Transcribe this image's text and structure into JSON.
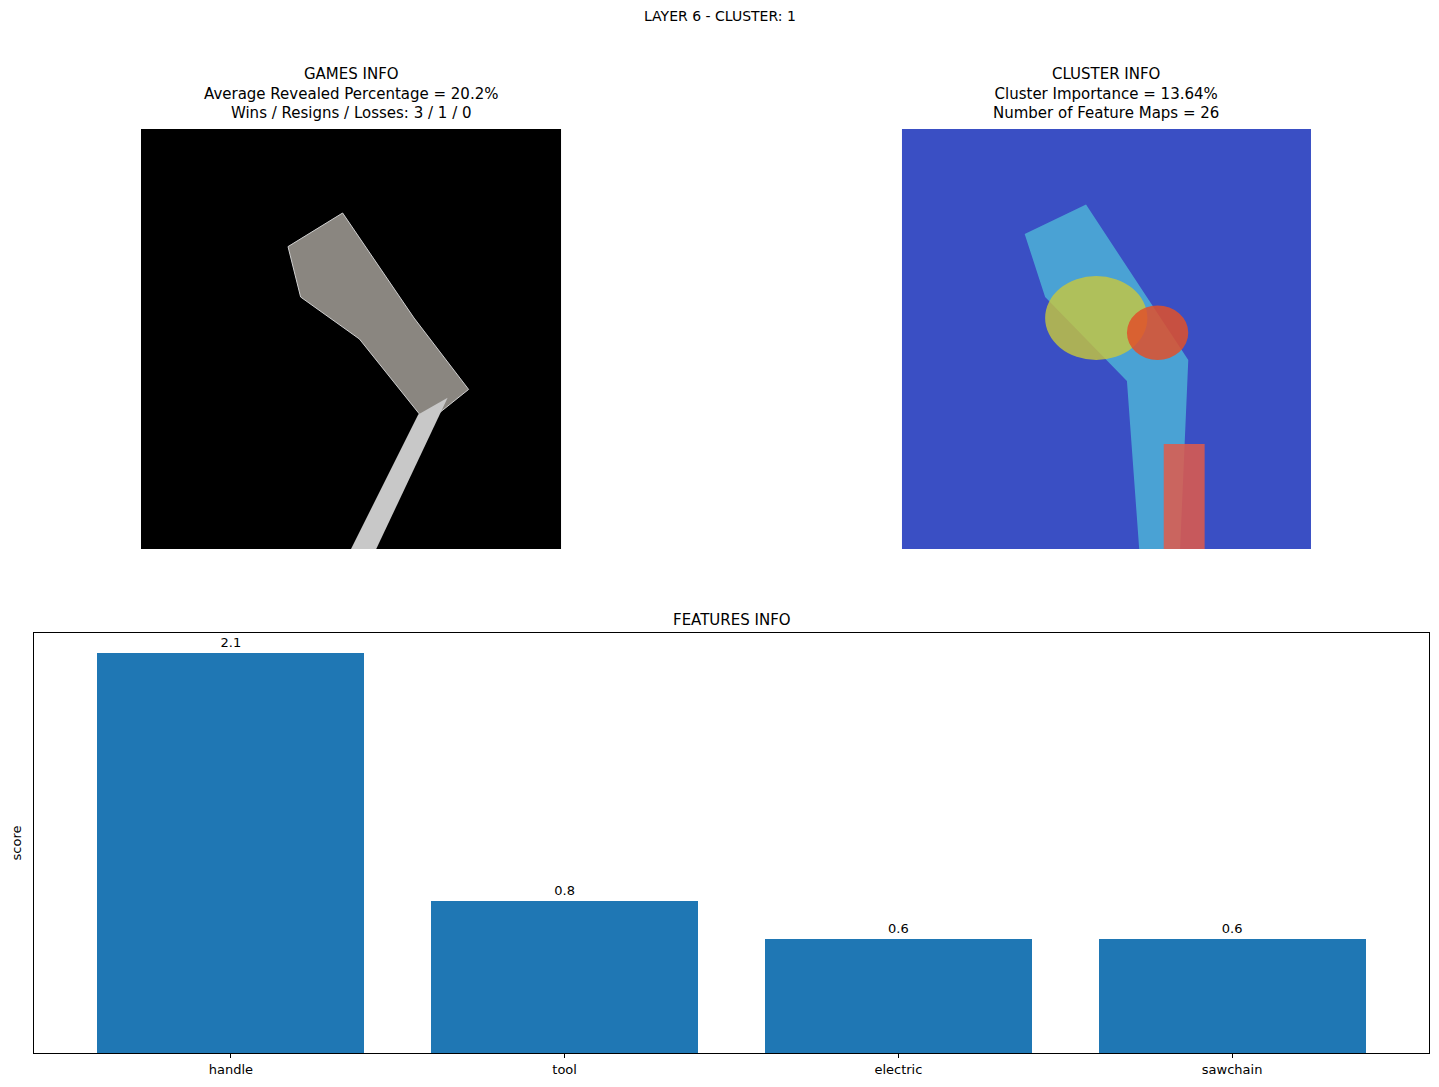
{
  "chart_data": {
    "type": "bar",
    "title": "LAYER 6 - CLUSTER: 1",
    "panel_titles": [
      [
        "GAMES INFO",
        "Average Revealed Percentage = 20.2%",
        "Wins / Resigns / Losses: 3 / 1 / 0"
      ],
      [
        "CLUSTER INFO",
        "Cluster Importance = 13.64%",
        "Number of Feature Maps = 26"
      ]
    ],
    "subtitle": "FEATURES INFO",
    "y_label": "score",
    "categories": [
      "handle",
      "tool",
      "electric",
      "sawchain"
    ],
    "values": [
      2.1,
      0.8,
      0.6,
      0.6
    ],
    "color": "#1f77b4",
    "ylim": [
      0,
      2.205
    ],
    "data_labels": true,
    "tick_labels": "x",
    "grid": false
  }
}
